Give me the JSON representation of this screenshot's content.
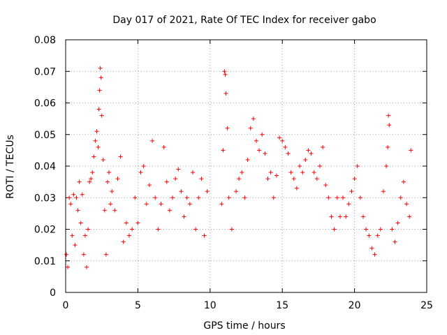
{
  "chart_data": {
    "type": "scatter",
    "title": "Day 017 of 2021, Rate Of TEC Index for receiver gabo",
    "xlabel": "GPS time / hours",
    "ylabel": "ROTI / TECUs",
    "xlim": [
      0,
      25
    ],
    "ylim": [
      0,
      0.08
    ],
    "xticks": [
      0,
      5,
      10,
      15,
      20,
      25
    ],
    "xtick_labels": [
      "0",
      "5",
      "10",
      "15",
      "20",
      "25"
    ],
    "yticks": [
      0,
      0.01,
      0.02,
      0.03,
      0.04,
      0.05,
      0.06,
      0.07,
      0.08
    ],
    "ytick_labels": [
      "0",
      "0.01",
      "0.02",
      "0.03",
      "0.04",
      "0.05",
      "0.06",
      "0.07",
      "0.08"
    ],
    "grid": true,
    "marker": "+",
    "color": "#ff0000",
    "series": [
      {
        "points": [
          [
            0.05,
            0.012
          ],
          [
            0.15,
            0.008
          ],
          [
            0.25,
            0.03
          ],
          [
            0.35,
            0.028
          ],
          [
            0.45,
            0.018
          ],
          [
            0.55,
            0.031
          ],
          [
            0.65,
            0.015
          ],
          [
            0.75,
            0.03
          ],
          [
            0.85,
            0.026
          ],
          [
            0.95,
            0.035
          ],
          [
            1.05,
            0.022
          ],
          [
            1.15,
            0.031
          ],
          [
            1.25,
            0.012
          ],
          [
            1.35,
            0.018
          ],
          [
            1.45,
            0.008
          ],
          [
            1.55,
            0.02
          ],
          [
            1.65,
            0.035
          ],
          [
            1.75,
            0.036
          ],
          [
            1.85,
            0.038
          ],
          [
            1.95,
            0.043
          ],
          [
            2.05,
            0.048
          ],
          [
            2.15,
            0.051
          ],
          [
            2.25,
            0.046
          ],
          [
            2.3,
            0.058
          ],
          [
            2.35,
            0.064
          ],
          [
            2.4,
            0.071
          ],
          [
            2.45,
            0.068
          ],
          [
            2.5,
            0.056
          ],
          [
            2.6,
            0.042
          ],
          [
            2.7,
            0.026
          ],
          [
            2.8,
            0.012
          ],
          [
            2.9,
            0.035
          ],
          [
            3.0,
            0.038
          ],
          [
            3.1,
            0.028
          ],
          [
            3.2,
            0.032
          ],
          [
            3.4,
            0.026
          ],
          [
            3.6,
            0.036
          ],
          [
            3.8,
            0.043
          ],
          [
            4.0,
            0.016
          ],
          [
            4.2,
            0.022
          ],
          [
            4.4,
            0.018
          ],
          [
            4.6,
            0.02
          ],
          [
            4.8,
            0.03
          ],
          [
            5.0,
            0.022
          ],
          [
            5.2,
            0.038
          ],
          [
            5.4,
            0.04
          ],
          [
            5.6,
            0.028
          ],
          [
            5.8,
            0.034
          ],
          [
            6.0,
            0.048
          ],
          [
            6.2,
            0.03
          ],
          [
            6.4,
            0.02
          ],
          [
            6.6,
            0.028
          ],
          [
            6.8,
            0.046
          ],
          [
            7.0,
            0.035
          ],
          [
            7.2,
            0.026
          ],
          [
            7.4,
            0.03
          ],
          [
            7.6,
            0.036
          ],
          [
            7.8,
            0.039
          ],
          [
            8.0,
            0.032
          ],
          [
            8.2,
            0.024
          ],
          [
            8.4,
            0.03
          ],
          [
            8.6,
            0.028
          ],
          [
            8.8,
            0.038
          ],
          [
            9.0,
            0.02
          ],
          [
            9.2,
            0.03
          ],
          [
            9.4,
            0.036
          ],
          [
            9.6,
            0.018
          ],
          [
            9.8,
            0.032
          ],
          [
            10.8,
            0.028
          ],
          [
            10.9,
            0.045
          ],
          [
            11.0,
            0.07
          ],
          [
            11.05,
            0.069
          ],
          [
            11.1,
            0.063
          ],
          [
            11.2,
            0.052
          ],
          [
            11.3,
            0.03
          ],
          [
            11.5,
            0.02
          ],
          [
            11.8,
            0.032
          ],
          [
            12.0,
            0.036
          ],
          [
            12.2,
            0.038
          ],
          [
            12.4,
            0.03
          ],
          [
            12.6,
            0.042
          ],
          [
            12.8,
            0.052
          ],
          [
            13.0,
            0.055
          ],
          [
            13.2,
            0.048
          ],
          [
            13.4,
            0.045
          ],
          [
            13.6,
            0.05
          ],
          [
            13.8,
            0.044
          ],
          [
            14.0,
            0.036
          ],
          [
            14.2,
            0.038
          ],
          [
            14.4,
            0.03
          ],
          [
            14.6,
            0.037
          ],
          [
            14.8,
            0.049
          ],
          [
            15.0,
            0.048
          ],
          [
            15.2,
            0.046
          ],
          [
            15.4,
            0.044
          ],
          [
            15.6,
            0.038
          ],
          [
            15.8,
            0.036
          ],
          [
            16.0,
            0.033
          ],
          [
            16.2,
            0.04
          ],
          [
            16.4,
            0.038
          ],
          [
            16.6,
            0.042
          ],
          [
            16.8,
            0.045
          ],
          [
            17.0,
            0.044
          ],
          [
            17.2,
            0.038
          ],
          [
            17.4,
            0.036
          ],
          [
            17.6,
            0.04
          ],
          [
            17.8,
            0.046
          ],
          [
            18.0,
            0.034
          ],
          [
            18.2,
            0.03
          ],
          [
            18.4,
            0.024
          ],
          [
            18.6,
            0.02
          ],
          [
            18.8,
            0.03
          ],
          [
            19.0,
            0.024
          ],
          [
            19.2,
            0.03
          ],
          [
            19.4,
            0.024
          ],
          [
            19.6,
            0.028
          ],
          [
            19.8,
            0.032
          ],
          [
            20.0,
            0.036
          ],
          [
            20.2,
            0.04
          ],
          [
            20.4,
            0.03
          ],
          [
            20.6,
            0.024
          ],
          [
            20.8,
            0.02
          ],
          [
            21.0,
            0.018
          ],
          [
            21.2,
            0.014
          ],
          [
            21.4,
            0.012
          ],
          [
            21.6,
            0.018
          ],
          [
            21.8,
            0.02
          ],
          [
            22.0,
            0.032
          ],
          [
            22.2,
            0.04
          ],
          [
            22.3,
            0.046
          ],
          [
            22.35,
            0.056
          ],
          [
            22.4,
            0.053
          ],
          [
            22.6,
            0.02
          ],
          [
            22.8,
            0.016
          ],
          [
            23.0,
            0.022
          ],
          [
            23.2,
            0.03
          ],
          [
            23.4,
            0.035
          ],
          [
            23.6,
            0.028
          ],
          [
            23.8,
            0.024
          ],
          [
            23.9,
            0.045
          ]
        ]
      }
    ]
  }
}
